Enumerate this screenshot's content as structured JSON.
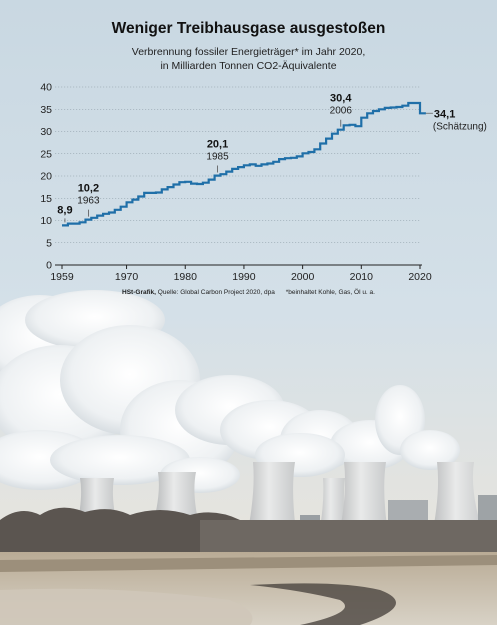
{
  "title": "Weniger Treibhausgase ausgestoßen",
  "subtitle_line1": "Verbrennung fossiler Energieträger* im Jahr 2020,",
  "subtitle_line2": "in Milliarden Tonnen CO2-Äquivalente",
  "source_brand": "HSt-Grafik,",
  "source_text": " Quelle: Global Carbon Project 2020, dpa",
  "footnote": "*beinhaltet Kohle, Gas, Öl u. a.",
  "colors": {
    "line": "#1f6fa8",
    "grid": "#8a9aa4",
    "sky": "#cfdde6"
  },
  "chart_data": {
    "type": "line",
    "title": "Weniger Treibhausgase ausgestoßen",
    "xlabel": "",
    "ylabel": "",
    "xlim": [
      1959,
      2021
    ],
    "ylim": [
      0,
      40
    ],
    "y_ticks": [
      0,
      5,
      10,
      15,
      20,
      25,
      30,
      35,
      40
    ],
    "x_ticks": [
      1959,
      1970,
      1980,
      1990,
      2000,
      2010,
      2020
    ],
    "grid": "horizontal dotted",
    "x": [
      1959,
      1960,
      1961,
      1962,
      1963,
      1964,
      1965,
      1966,
      1967,
      1968,
      1969,
      1970,
      1971,
      1972,
      1973,
      1974,
      1975,
      1976,
      1977,
      1978,
      1979,
      1980,
      1981,
      1982,
      1983,
      1984,
      1985,
      1986,
      1987,
      1988,
      1989,
      1990,
      1991,
      1992,
      1993,
      1994,
      1995,
      1996,
      1997,
      1998,
      1999,
      2000,
      2001,
      2002,
      2003,
      2004,
      2005,
      2006,
      2007,
      2008,
      2009,
      2010,
      2011,
      2012,
      2013,
      2014,
      2015,
      2016,
      2017,
      2018,
      2019,
      2020
    ],
    "values": [
      8.9,
      9.3,
      9.3,
      9.6,
      10.2,
      10.6,
      11.1,
      11.5,
      11.8,
      12.4,
      13.1,
      14.1,
      14.7,
      15.4,
      16.2,
      16.2,
      16.3,
      17.0,
      17.5,
      18.1,
      18.6,
      18.7,
      18.3,
      18.2,
      18.5,
      19.2,
      20.1,
      20.4,
      21.0,
      21.6,
      22.0,
      22.4,
      22.6,
      22.3,
      22.6,
      22.8,
      23.2,
      23.8,
      24.0,
      24.1,
      24.4,
      25.1,
      25.4,
      26.0,
      27.3,
      28.4,
      29.5,
      30.4,
      31.4,
      31.5,
      31.2,
      33.1,
      34.1,
      34.6,
      35.0,
      35.3,
      35.4,
      35.5,
      35.8,
      36.4,
      36.4,
      34.1
    ],
    "annotations": [
      {
        "year": 1959,
        "value_label": "8,9",
        "year_label": ""
      },
      {
        "year": 1963,
        "value_label": "10,2",
        "year_label": "1963"
      },
      {
        "year": 1985,
        "value_label": "20,1",
        "year_label": "1985"
      },
      {
        "year": 2006,
        "value_label": "30,4",
        "year_label": "2006"
      },
      {
        "year": 2020,
        "value_label": "34,1",
        "year_label": "(Schätzung)"
      }
    ]
  }
}
